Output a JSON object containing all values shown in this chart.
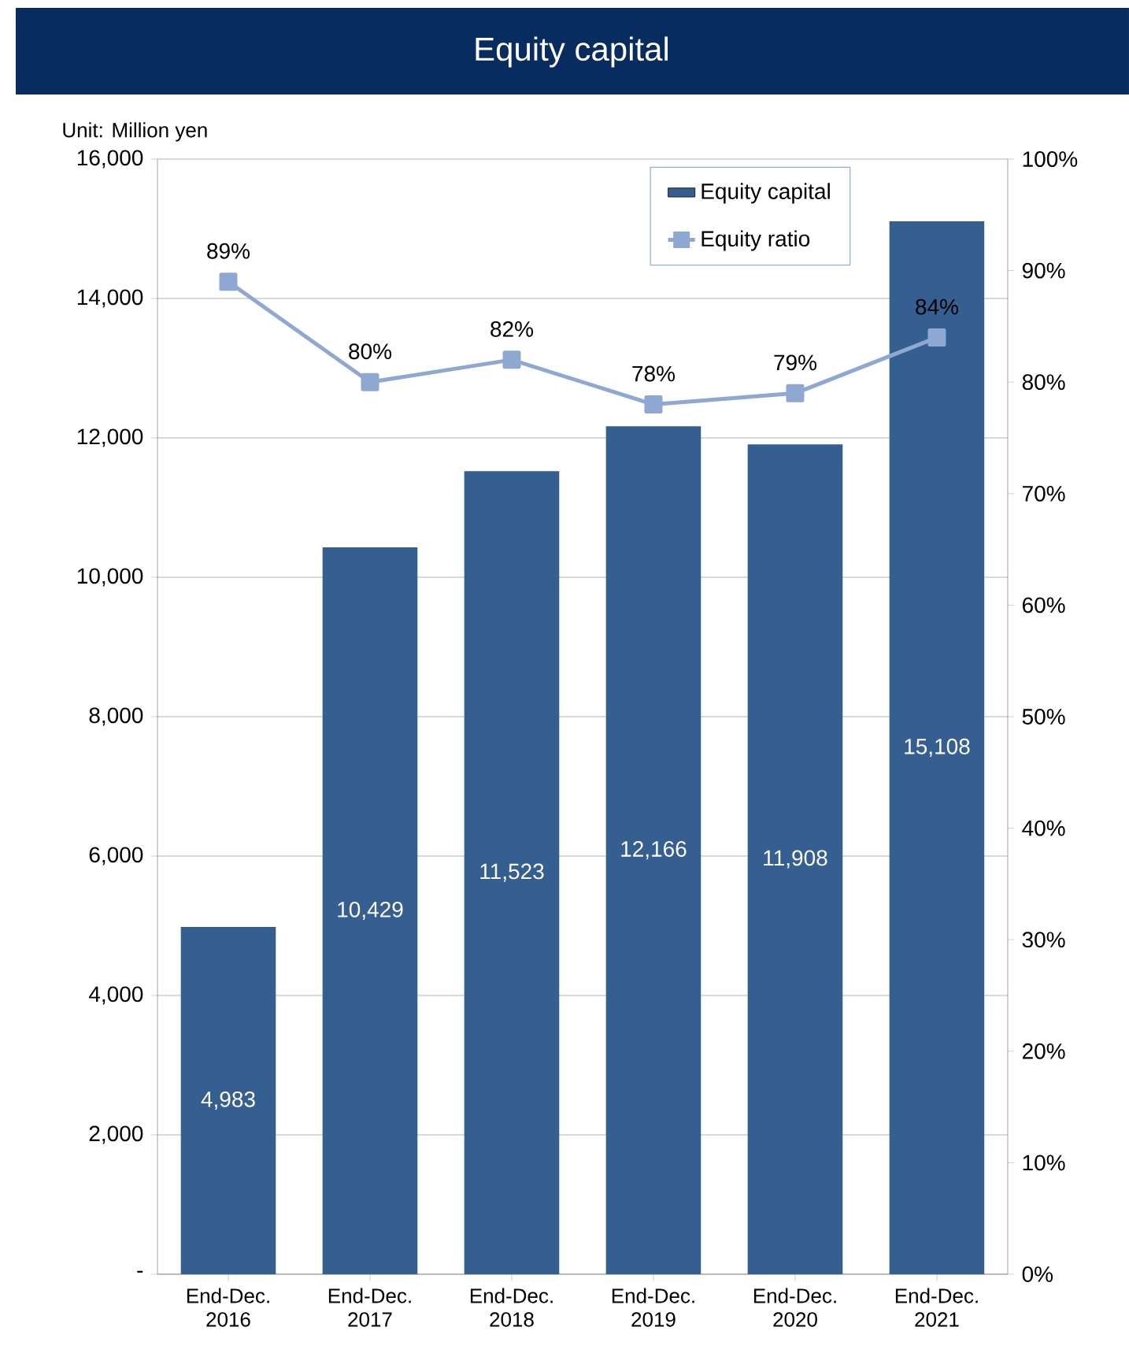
{
  "chart_data": {
    "type": "bar",
    "title": "Equity capital",
    "annotations": [
      "Unit: Million yen"
    ],
    "categories": [
      "End-Dec. 2016",
      "End-Dec. 2017",
      "End-Dec. 2018",
      "End-Dec. 2019",
      "End-Dec. 2020",
      "End-Dec. 2021"
    ],
    "series": [
      {
        "name": "Equity capital",
        "color": "#365f91",
        "values": [
          4983,
          10429,
          11523,
          12166,
          11908,
          15108
        ],
        "value_labels": [
          "4,983",
          "10,429",
          "11,523",
          "12,166",
          "11,908",
          "15,108"
        ]
      },
      {
        "name": "Equity ratio",
        "type": "line",
        "axis": "y2",
        "color": "#8fa8d2",
        "marker": "square",
        "values": [
          89,
          80,
          82,
          78,
          79,
          84
        ],
        "value_labels": [
          "89%",
          "80%",
          "82%",
          "78%",
          "79%",
          "84%"
        ]
      }
    ],
    "ylim": [
      0,
      16000
    ],
    "yticks": [
      {
        "value": 0,
        "label": "-"
      },
      {
        "value": 2000,
        "label": "2,000"
      },
      {
        "value": 4000,
        "label": "4,000"
      },
      {
        "value": 6000,
        "label": "6,000"
      },
      {
        "value": 8000,
        "label": "8,000"
      },
      {
        "value": 10000,
        "label": "10,000"
      },
      {
        "value": 12000,
        "label": "12,000"
      },
      {
        "value": 14000,
        "label": "14,000"
      },
      {
        "value": 16000,
        "label": "16,000"
      }
    ],
    "y2lim": [
      0,
      100
    ],
    "y2ticks": [
      {
        "value": 0,
        "label": "0%"
      },
      {
        "value": 10,
        "label": "10%"
      },
      {
        "value": 20,
        "label": "20%"
      },
      {
        "value": 30,
        "label": "30%"
      },
      {
        "value": 40,
        "label": "40%"
      },
      {
        "value": 50,
        "label": "50%"
      },
      {
        "value": 60,
        "label": "60%"
      },
      {
        "value": 70,
        "label": "70%"
      },
      {
        "value": 80,
        "label": "80%"
      },
      {
        "value": 90,
        "label": "90%"
      },
      {
        "value": 100,
        "label": "100%"
      }
    ],
    "grid": "y",
    "legend": "top right"
  }
}
